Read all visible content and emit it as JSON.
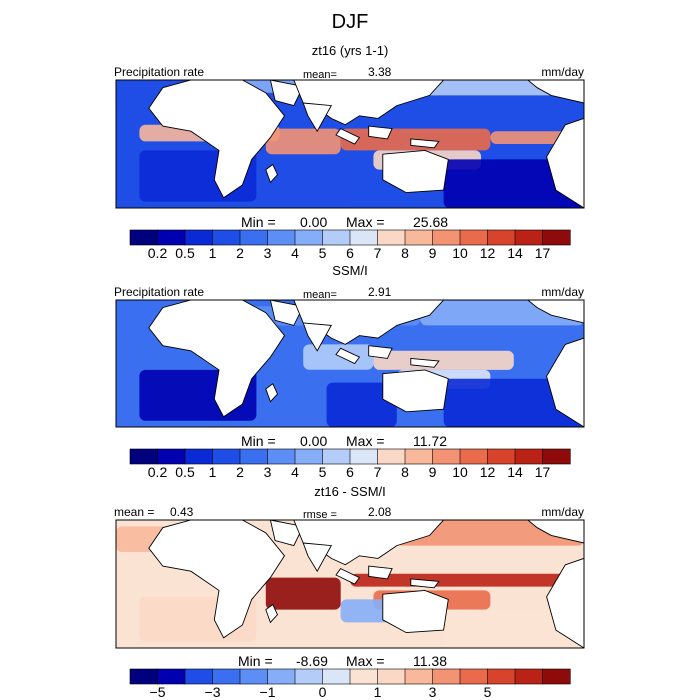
{
  "title": "DJF",
  "colors": {
    "land": "#ffffff",
    "coast": "#000000",
    "frame": "#000000"
  },
  "chart_data": [
    {
      "type": "heatmap",
      "title": "zt16 (yrs 1-1)",
      "left_label": "Precipitation rate",
      "mean_label": "mean=",
      "mean_value": "3.38",
      "units": "mm/day",
      "min_label": "Min =",
      "min_value": "0.00",
      "max_label": "Max =",
      "max_value": "25.68",
      "colorbar": {
        "levels": [
          "0.2",
          "0.5",
          "1",
          "2",
          "3",
          "4",
          "5",
          "6",
          "7",
          "8",
          "9",
          "10",
          "12",
          "14",
          "17"
        ],
        "colors": [
          "#00007f",
          "#0000b0",
          "#0a2ad6",
          "#1f4ee6",
          "#3a6ff0",
          "#5d8ef5",
          "#86adf7",
          "#b3cdf8",
          "#dae6f8",
          "#fbd8c6",
          "#f8b89c",
          "#f29473",
          "#e96b4b",
          "#d8442b",
          "#bb2216",
          "#8f0a0a"
        ]
      },
      "bands": [
        {
          "x": [
            0.0,
            0.22
          ],
          "y": [
            0.02,
            0.14
          ],
          "v": 3
        },
        {
          "x": [
            0.22,
            0.6
          ],
          "y": [
            0.0,
            0.1
          ],
          "v": 6
        },
        {
          "x": [
            0.6,
            1.0
          ],
          "y": [
            0.0,
            0.12
          ],
          "v": 7
        },
        {
          "x": [
            0.05,
            0.35
          ],
          "y": [
            0.35,
            0.48
          ],
          "v": 10
        },
        {
          "x": [
            0.32,
            0.48
          ],
          "y": [
            0.38,
            0.58
          ],
          "v": 11
        },
        {
          "x": [
            0.48,
            0.8
          ],
          "y": [
            0.38,
            0.55
          ],
          "v": 12
        },
        {
          "x": [
            0.8,
            1.0
          ],
          "y": [
            0.4,
            0.5
          ],
          "v": 11
        },
        {
          "x": [
            0.55,
            0.78
          ],
          "y": [
            0.55,
            0.7
          ],
          "v": 9
        },
        {
          "x": [
            0.05,
            0.3
          ],
          "y": [
            0.55,
            0.95
          ],
          "v": 2
        },
        {
          "x": [
            0.3,
            0.5
          ],
          "y": [
            0.65,
            1.0
          ],
          "v": 3
        },
        {
          "x": [
            0.7,
            1.0
          ],
          "y": [
            0.62,
            1.0
          ],
          "v": 1
        }
      ]
    },
    {
      "type": "heatmap",
      "title": "SSM/I",
      "left_label": "Precipitation rate",
      "mean_label": "mean=",
      "mean_value": "2.91",
      "units": "mm/day",
      "min_label": "Min =",
      "min_value": "0.00",
      "max_label": "Max =",
      "max_value": "11.72",
      "colorbar": {
        "levels": [
          "0.2",
          "0.5",
          "1",
          "2",
          "3",
          "4",
          "5",
          "6",
          "7",
          "8",
          "9",
          "10",
          "12",
          "14",
          "17"
        ],
        "colors": [
          "#00007f",
          "#0000b0",
          "#0a2ad6",
          "#1f4ee6",
          "#3a6ff0",
          "#5d8ef5",
          "#86adf7",
          "#b3cdf8",
          "#dae6f8",
          "#fbd8c6",
          "#f8b89c",
          "#f29473",
          "#e96b4b",
          "#d8442b",
          "#bb2216",
          "#8f0a0a"
        ]
      },
      "bands": [
        {
          "x": [
            0.0,
            0.25
          ],
          "y": [
            0.0,
            0.25
          ],
          "v": 4
        },
        {
          "x": [
            0.25,
            0.65
          ],
          "y": [
            0.05,
            0.2
          ],
          "v": 5
        },
        {
          "x": [
            0.65,
            1.0
          ],
          "y": [
            0.0,
            0.2
          ],
          "v": 6
        },
        {
          "x": [
            0.4,
            0.55
          ],
          "y": [
            0.35,
            0.55
          ],
          "v": 7
        },
        {
          "x": [
            0.55,
            0.85
          ],
          "y": [
            0.4,
            0.55
          ],
          "v": 9
        },
        {
          "x": [
            0.6,
            0.8
          ],
          "y": [
            0.55,
            0.7
          ],
          "v": 8
        },
        {
          "x": [
            0.05,
            0.3
          ],
          "y": [
            0.55,
            0.95
          ],
          "v": 1
        },
        {
          "x": [
            0.45,
            0.6
          ],
          "y": [
            0.65,
            1.0
          ],
          "v": 2
        },
        {
          "x": [
            0.7,
            1.0
          ],
          "y": [
            0.62,
            1.0
          ],
          "v": 2
        }
      ]
    },
    {
      "type": "heatmap",
      "title": "zt16 - SSM/I",
      "left_label": "mean =",
      "left_value": "0.43",
      "mean_label": "rmse =",
      "mean_value": "2.08",
      "units": "mm/day",
      "min_label": "Min =",
      "min_value": "-8.69",
      "max_label": "Max =",
      "max_value": "11.38",
      "colorbar": {
        "levels": [
          "-5",
          "-3",
          "-1",
          "0",
          "1",
          "3",
          "5"
        ],
        "colors": [
          "#00007f",
          "#0000b0",
          "#1f4ee6",
          "#3a6ff0",
          "#5d8ef5",
          "#86adf7",
          "#b3cdf8",
          "#dae6f8",
          "#fbe3d4",
          "#fbd8c6",
          "#f8b89c",
          "#f29473",
          "#e96b4b",
          "#d8442b",
          "#bb2216",
          "#8f0a0a"
        ],
        "label_slots": [
          1,
          3,
          5,
          7,
          9,
          11,
          13
        ]
      },
      "bands": [
        {
          "x": [
            0.0,
            0.2
          ],
          "y": [
            0.05,
            0.25
          ],
          "v": 10
        },
        {
          "x": [
            0.6,
            1.0
          ],
          "y": [
            0.0,
            0.2
          ],
          "v": 11
        },
        {
          "x": [
            0.32,
            0.48
          ],
          "y": [
            0.45,
            0.7
          ],
          "v": 15
        },
        {
          "x": [
            0.5,
            1.0
          ],
          "y": [
            0.42,
            0.52
          ],
          "v": 14
        },
        {
          "x": [
            0.55,
            0.8
          ],
          "y": [
            0.55,
            0.7
          ],
          "v": 12
        },
        {
          "x": [
            0.48,
            0.62
          ],
          "y": [
            0.62,
            0.8
          ],
          "v": 5
        },
        {
          "x": [
            0.05,
            0.3
          ],
          "y": [
            0.6,
            0.95
          ],
          "v": 9
        },
        {
          "x": [
            0.7,
            1.0
          ],
          "y": [
            0.7,
            1.0
          ],
          "v": 8
        }
      ]
    }
  ]
}
